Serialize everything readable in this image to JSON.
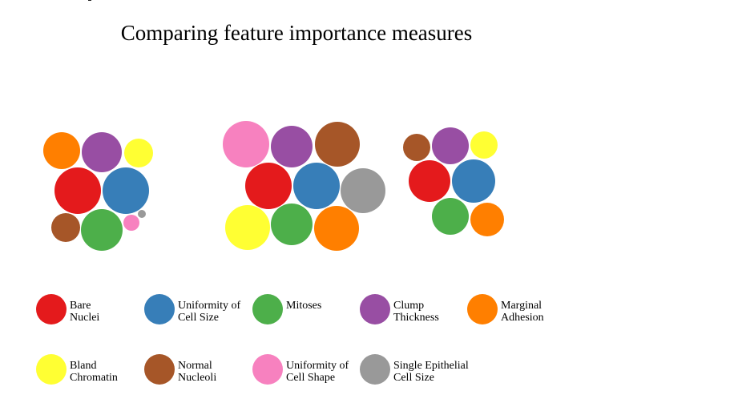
{
  "chart_data": {
    "type": "bubble",
    "title": "Comparing feature importance measures",
    "colors": {
      "Bare Nuclei": "#e41a1c",
      "Uniformity of Cell Size": "#377eb8",
      "Mitoses": "#4daf4a",
      "Clump Thickness": "#984ea3",
      "Marginal Adhesion": "#ff7f00",
      "Bland Chromatin": "#ffff33",
      "Normal Nucleoli": "#a65628",
      "Uniformity of Cell Shape": "#f781bf",
      "Single Epithelial Cell Size": "#999999"
    },
    "legend": [
      {
        "name": "Bare Nuclei",
        "lines": [
          "Bare",
          "Nuclei"
        ]
      },
      {
        "name": "Uniformity of Cell Size",
        "lines": [
          "Uniformity of",
          "Cell Size"
        ]
      },
      {
        "name": "Mitoses",
        "lines": [
          "Mitoses"
        ]
      },
      {
        "name": "Clump Thickness",
        "lines": [
          "Clump",
          "Thickness"
        ]
      },
      {
        "name": "Marginal Adhesion",
        "lines": [
          "Marginal",
          "Adhesion"
        ]
      },
      {
        "name": "Bland Chromatin",
        "lines": [
          "Bland",
          "Chromatin"
        ]
      },
      {
        "name": "Normal Nucleoli",
        "lines": [
          "Normal",
          "Nucleoli"
        ]
      },
      {
        "name": "Uniformity of Cell Shape",
        "lines": [
          "Uniformity of",
          "Cell Shape"
        ]
      },
      {
        "name": "Single Epithelial Cell Size",
        "lines": [
          "Single Epithelial",
          "Cell Size"
        ]
      }
    ],
    "groups": [
      {
        "series": [
          {
            "name": "Bare Nuclei",
            "value": 29
          },
          {
            "name": "Uniformity of Cell Size",
            "value": 29
          },
          {
            "name": "Mitoses",
            "value": 26
          },
          {
            "name": "Clump Thickness",
            "value": 25
          },
          {
            "name": "Marginal Adhesion",
            "value": 23
          },
          {
            "name": "Bland Chromatin",
            "value": 18
          },
          {
            "name": "Normal Nucleoli",
            "value": 18
          },
          {
            "name": "Uniformity of Cell Shape",
            "value": 10
          },
          {
            "name": "Single Epithelial Cell Size",
            "value": 5
          }
        ]
      },
      {
        "series": [
          {
            "name": "Bare Nuclei",
            "value": 29
          },
          {
            "name": "Uniformity of Cell Size",
            "value": 29
          },
          {
            "name": "Mitoses",
            "value": 26
          },
          {
            "name": "Clump Thickness",
            "value": 26
          },
          {
            "name": "Marginal Adhesion",
            "value": 28
          },
          {
            "name": "Bland Chromatin",
            "value": 28
          },
          {
            "name": "Normal Nucleoli",
            "value": 28
          },
          {
            "name": "Uniformity of Cell Shape",
            "value": 29
          },
          {
            "name": "Single Epithelial Cell Size",
            "value": 28
          }
        ]
      },
      {
        "series": [
          {
            "name": "Bare Nuclei",
            "value": 26
          },
          {
            "name": "Uniformity of Cell Size",
            "value": 27
          },
          {
            "name": "Mitoses",
            "value": 23
          },
          {
            "name": "Clump Thickness",
            "value": 23
          },
          {
            "name": "Marginal Adhesion",
            "value": 21
          },
          {
            "name": "Bland Chromatin",
            "value": 17
          },
          {
            "name": "Normal Nucleoli",
            "value": 17
          }
        ]
      }
    ]
  }
}
